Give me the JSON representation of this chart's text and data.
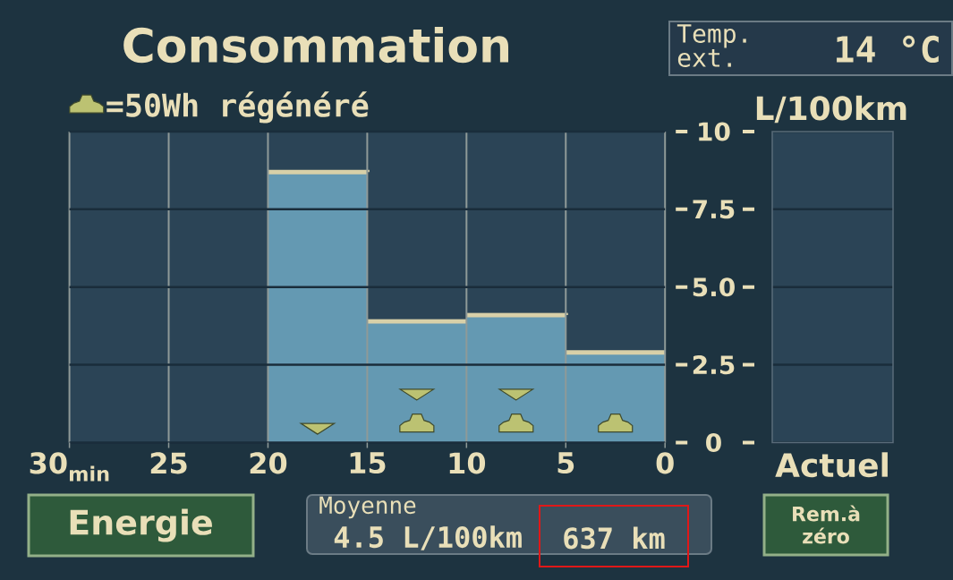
{
  "chart_data": [
    {
      "type": "histogram",
      "title": "Consommation",
      "ylabel": "L/100km",
      "bins": [
        30,
        25,
        20,
        15,
        10,
        5,
        0
      ],
      "xlim": [
        30,
        0
      ],
      "xticks": [
        {
          "value": 30,
          "label": "30$_{min}$"
        },
        25,
        20,
        15,
        10,
        5,
        0
      ],
      "ylim": [
        0,
        10
      ],
      "yticks": [
        0,
        2.5,
        {
          "value": 5,
          "label": "5.0"
        },
        7.5,
        10
      ],
      "grid": true,
      "legend": "top left",
      "series": [
        {
          "type": "histogram",
          "color": "#6499b2",
          "values": [
            null,
            null,
            8.7,
            3.9,
            4.1,
            2.9
          ]
        },
        {
          "type": "scatter",
          "name": "=50Wh régénéré",
          "color": "#bcc272",
          "x": [
            12.5,
            7.5,
            2.5
          ],
          "values": [
            0.6,
            0.6,
            0.6
          ]
        },
        {
          "type": "scatter",
          "marker": "triangle",
          "color": "#bcc272",
          "x": [
            17.5,
            12.5,
            7.5
          ],
          "values": [
            0.5,
            1.6,
            1.6
          ]
        }
      ],
      "annotations": [
        "Temp. ext.",
        "14 °C",
        "Energie",
        "Moyenne",
        "4.5 L/100km",
        "637 km",
        "Rem.à zéro"
      ]
    },
    {
      "type": "bar",
      "categories": [
        "Actuel"
      ],
      "values": [
        null
      ],
      "ylim": [
        0,
        10
      ],
      "yticks": [
        0,
        2.5,
        5,
        7.5,
        10
      ],
      "tick_labels": "x",
      "grid": "y"
    }
  ]
}
